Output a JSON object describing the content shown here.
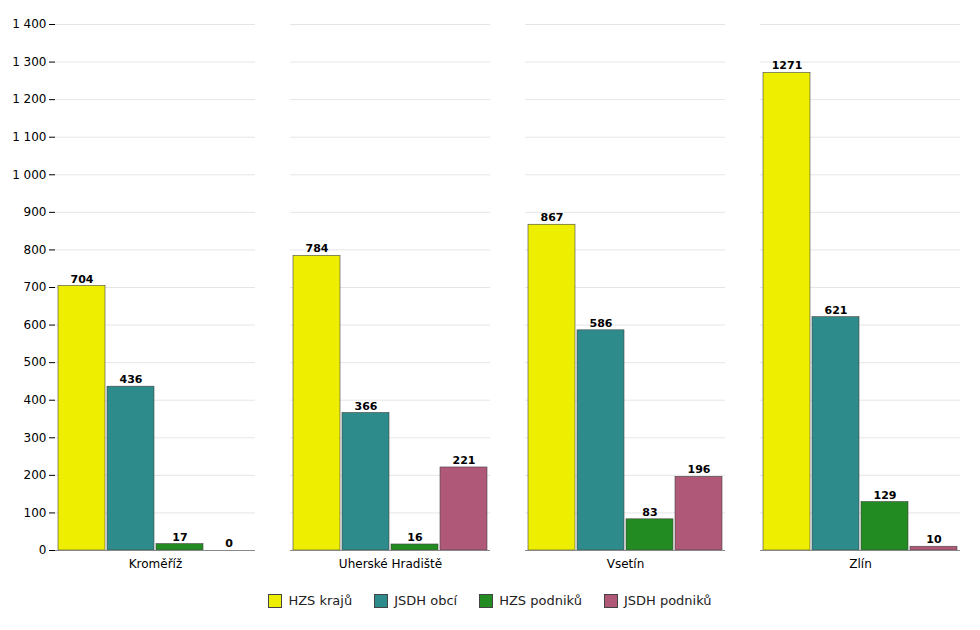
{
  "chart_data": {
    "type": "bar",
    "categories": [
      "Kroměříž",
      "Uherské Hradiště",
      "Vsetín",
      "Zlín"
    ],
    "series": [
      {
        "name": "HZS krajů",
        "color": "#EEEE00",
        "values": [
          704,
          784,
          867,
          1271
        ]
      },
      {
        "name": "JSDH obcí",
        "color": "#2E8B8B",
        "values": [
          436,
          366,
          586,
          621
        ]
      },
      {
        "name": "HZS podniků",
        "color": "#228B22",
        "values": [
          17,
          16,
          83,
          129
        ]
      },
      {
        "name": "JSDH podniků",
        "color": "#B05878",
        "values": [
          0,
          221,
          196,
          10
        ]
      }
    ],
    "ylim": [
      0,
      1400
    ],
    "yticks": [
      0,
      100,
      200,
      300,
      400,
      500,
      600,
      700,
      800,
      900,
      {
        "value": 1000,
        "label": "1 000"
      },
      {
        "value": 1100,
        "label": "1 100"
      },
      {
        "value": 1200,
        "label": "1 200"
      },
      {
        "value": 1300,
        "label": "1 300"
      },
      {
        "value": 1400,
        "label": "1 400"
      }
    ],
    "grid": true,
    "data_labels": true,
    "legend": "bottom"
  }
}
